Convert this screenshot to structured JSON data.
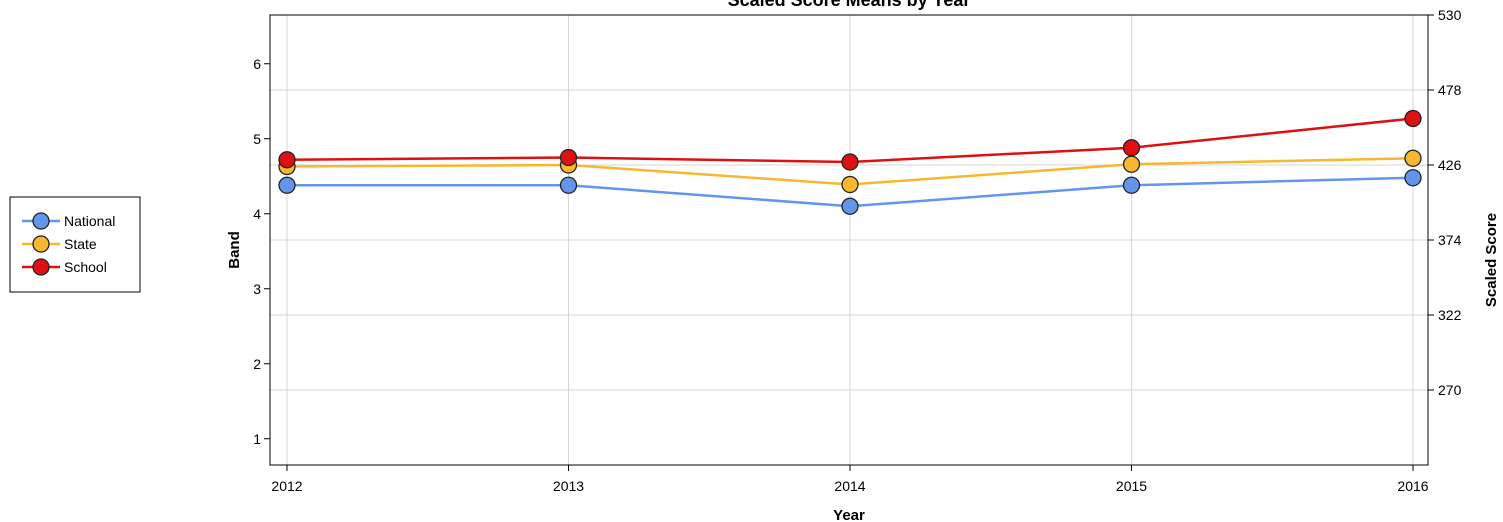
{
  "chart_data": {
    "type": "line",
    "title": "Scaled Score Means by Year",
    "xlabel": "Year",
    "ylabel_left": "Band",
    "ylabel_right": "Scaled Score",
    "categories": [
      "2012",
      "2013",
      "2014",
      "2015",
      "2016"
    ],
    "left_axis": {
      "range": [
        0.65,
        6.65
      ],
      "ticks": [
        1,
        2,
        3,
        4,
        5,
        6
      ]
    },
    "right_axis": {
      "range": [
        218,
        530
      ],
      "ticks": [
        270,
        322,
        374,
        426,
        478,
        530
      ]
    },
    "grid": true,
    "legend_position": "left",
    "series": [
      {
        "name": "National",
        "color": "#6495ED",
        "values": [
          4.38,
          4.38,
          4.1,
          4.38,
          4.48
        ]
      },
      {
        "name": "State",
        "color": "#F5B82E",
        "values": [
          4.63,
          4.65,
          4.39,
          4.66,
          4.74
        ]
      },
      {
        "name": "School",
        "color": "#DD1111",
        "values": [
          4.72,
          4.75,
          4.69,
          4.88,
          5.27
        ]
      }
    ]
  }
}
